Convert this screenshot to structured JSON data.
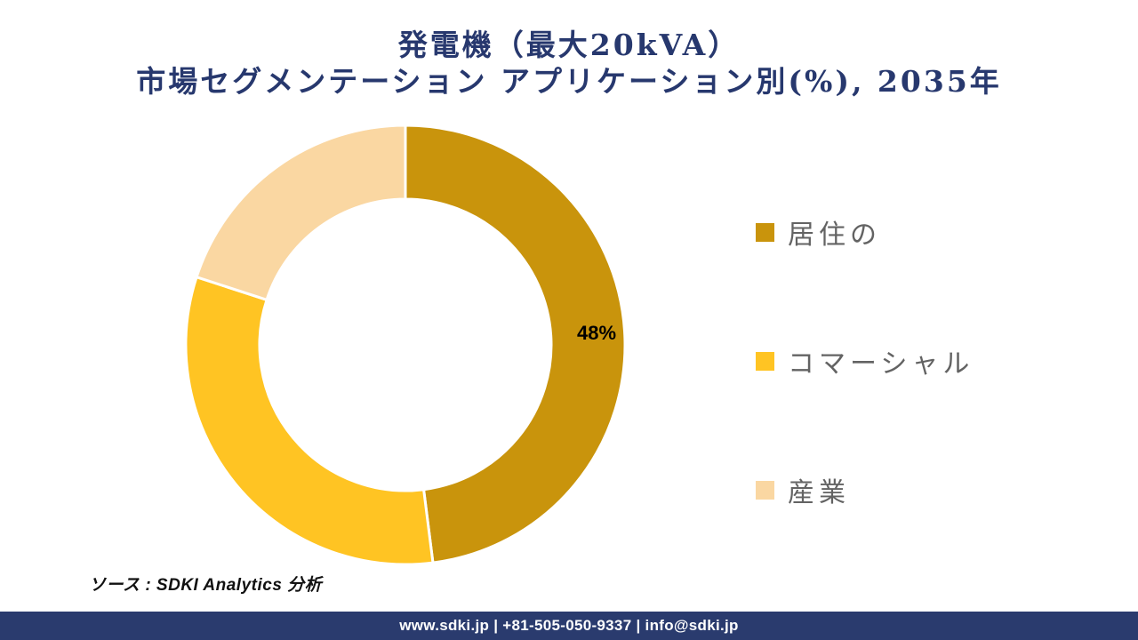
{
  "title": {
    "line1": "発電機（最大20kVA）",
    "line2": "市場セグメンテーション アプリケーション別(%), 2035年"
  },
  "chart_data": {
    "type": "pie",
    "subtype": "donut",
    "title": "発電機（最大20kVA） 市場セグメンテーション アプリケーション別(%), 2035年",
    "unit": "%",
    "direction": "clockwise",
    "start_angle_deg": 0,
    "inner_radius_ratio": 0.664,
    "legend_position": "right",
    "segments": [
      {
        "label": "居住の",
        "value": 48,
        "color": "#C9940C",
        "show_value_label": true
      },
      {
        "label": "コマーシャル",
        "value": 32,
        "color": "#FFC423",
        "show_value_label": false
      },
      {
        "label": "産業",
        "value": 20,
        "color": "#FAD7A2",
        "show_value_label": false
      }
    ],
    "value_label_suffix": "%"
  },
  "source_note": "ソース : SDKI Analytics 分析",
  "footer": {
    "text": "www.sdki.jp | +81-505-050-9337 | info@sdki.jp"
  },
  "colors": {
    "title_text": "#27386E",
    "legend_text": "#636363",
    "value_label_text": "#000000",
    "slice_separator": "#FFFFFF",
    "footer_background": "#2A3B6E",
    "footer_text": "#FFFFFF"
  }
}
